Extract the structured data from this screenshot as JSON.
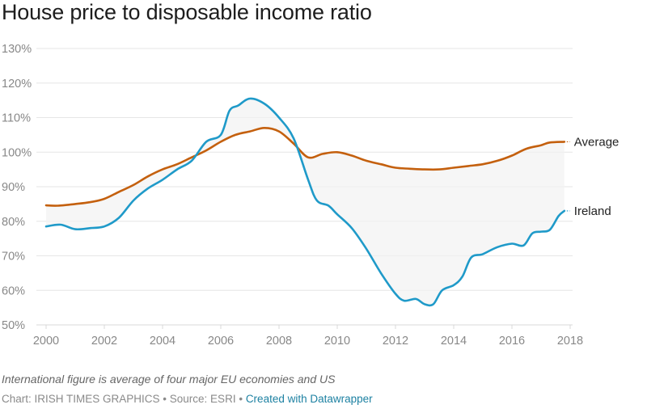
{
  "chart_data": {
    "type": "line",
    "title": "House price to disposable income ratio",
    "xlabel": "",
    "ylabel": "",
    "xlim": [
      2000,
      2018
    ],
    "ylim": [
      50,
      130
    ],
    "x_ticks": [
      "2000",
      "2002",
      "2004",
      "2006",
      "2008",
      "2010",
      "2012",
      "2014",
      "2016",
      "2018"
    ],
    "x_tick_values": [
      2000,
      2002,
      2004,
      2006,
      2008,
      2010,
      2012,
      2014,
      2016,
      2018
    ],
    "y_ticks": [
      "50%",
      "60%",
      "70%",
      "80%",
      "90%",
      "100%",
      "110%",
      "120%",
      "130%"
    ],
    "y_tick_values": [
      50,
      60,
      70,
      80,
      90,
      100,
      110,
      120,
      130
    ],
    "grid": true,
    "fill_between_series": true,
    "legend": "direct-labels-right",
    "series": [
      {
        "name": "Average",
        "color": "#c4600e",
        "x": [
          2000,
          2000.4,
          2001,
          2001.5,
          2002,
          2002.5,
          2003,
          2003.5,
          2004,
          2004.5,
          2005,
          2005.5,
          2006,
          2006.5,
          2007,
          2007.5,
          2008,
          2008.5,
          2009,
          2009.5,
          2010,
          2010.5,
          2011,
          2011.5,
          2012,
          2012.5,
          2013,
          2013.5,
          2014,
          2014.5,
          2015,
          2015.5,
          2016,
          2016.5,
          2017,
          2017.3,
          2017.8
        ],
        "values": [
          84.6,
          84.5,
          85,
          85.5,
          86.5,
          88.5,
          90.5,
          93,
          95,
          96.5,
          98.5,
          100.5,
          103,
          105,
          106,
          107,
          106,
          102.5,
          98.5,
          99.5,
          100,
          99,
          97.5,
          96.5,
          95.5,
          95.2,
          95,
          95,
          95.5,
          96,
          96.5,
          97.5,
          99,
          101,
          102,
          102.8,
          103
        ]
      },
      {
        "name": "Ireland",
        "color": "#1f9ac9",
        "x": [
          2000,
          2000.5,
          2001,
          2001.5,
          2002,
          2002.5,
          2003,
          2003.5,
          2004,
          2004.5,
          2005,
          2005.5,
          2006,
          2006.3,
          2006.6,
          2007,
          2007.5,
          2008,
          2008.5,
          2009,
          2009.3,
          2009.7,
          2010,
          2010.5,
          2011,
          2011.5,
          2012,
          2012.3,
          2012.7,
          2013,
          2013.3,
          2013.6,
          2014,
          2014.3,
          2014.6,
          2015,
          2015.5,
          2016,
          2016.4,
          2016.7,
          2017,
          2017.3,
          2017.6,
          2017.8
        ],
        "values": [
          78.5,
          79,
          77.7,
          78,
          78.5,
          81,
          86,
          89.5,
          92,
          95,
          97.5,
          103,
          105,
          112,
          113.5,
          115.5,
          114,
          110,
          104,
          92,
          86,
          84.5,
          82,
          78,
          72,
          65,
          59,
          57,
          57.5,
          56,
          56,
          60,
          61.5,
          64,
          69.5,
          70.5,
          72.5,
          73.5,
          73,
          76.5,
          77,
          77.5,
          81.5,
          83
        ]
      }
    ]
  },
  "notes": "International figure is average of four major EU economies and US",
  "byline": {
    "chart": "Chart: IRISH TIMES GRAPHICS",
    "separator": " • ",
    "source": "Source: ESRI",
    "credit_link": "Created with Datawrapper"
  }
}
